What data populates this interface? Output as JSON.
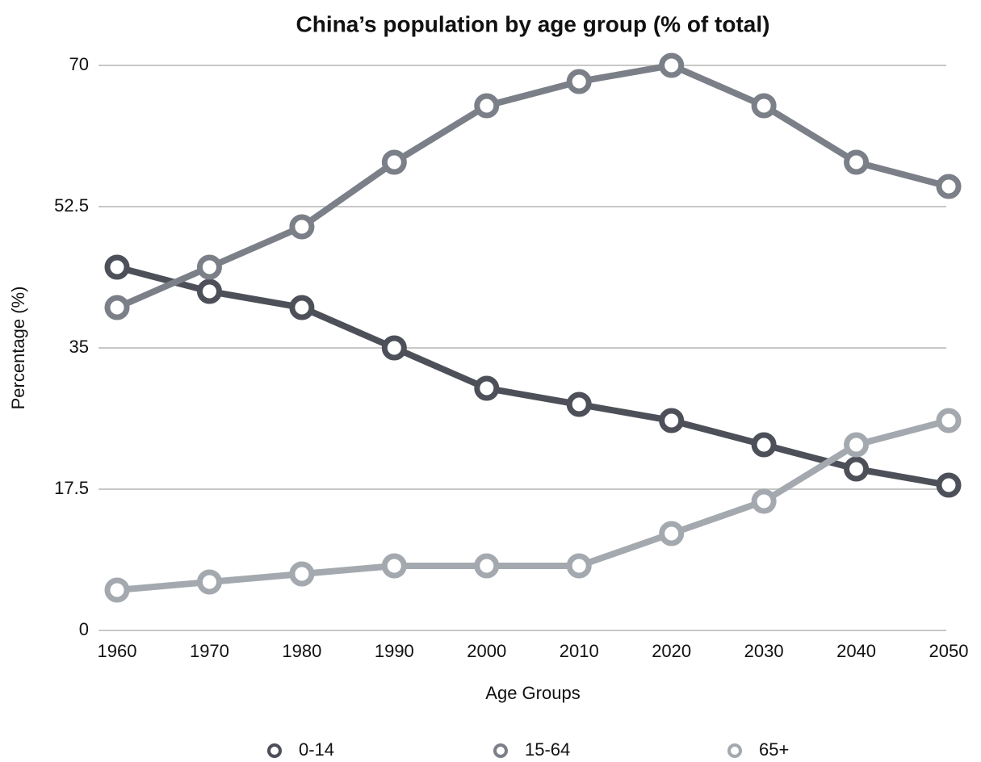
{
  "chart_data": {
    "type": "line",
    "title": "China’s population by age group (% of total)",
    "x_label": "Age Groups",
    "y_label": "Percentage (%)",
    "categories": [
      "1960",
      "1970",
      "1980",
      "1990",
      "2000",
      "2010",
      "2020",
      "2030",
      "2040",
      "2050"
    ],
    "series": [
      {
        "name": "0-14",
        "color": "#4d5059",
        "values": [
          45,
          42,
          40,
          35,
          30,
          28,
          26,
          23,
          20,
          18
        ]
      },
      {
        "name": "15-64",
        "color": "#7b7f88",
        "values": [
          40,
          45,
          50,
          58,
          65,
          68,
          70,
          65,
          58,
          55
        ]
      },
      {
        "name": "65+",
        "color": "#a3a9af",
        "values": [
          5,
          6,
          7,
          8,
          8,
          8,
          12,
          16,
          23,
          26
        ]
      }
    ],
    "ylim": [
      0,
      70
    ],
    "yticks": [
      0,
      17.5,
      35,
      52.5,
      70
    ],
    "grid": true,
    "legend": "bottom"
  }
}
